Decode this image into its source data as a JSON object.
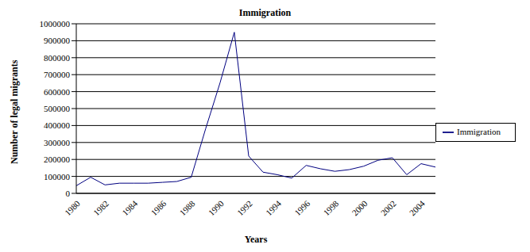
{
  "chart_data": {
    "type": "line",
    "title": "Immigration",
    "x_label": "Years",
    "y_label": "Number of legal migrants",
    "categories": [
      "1980",
      null,
      "1982",
      null,
      "1984",
      null,
      "1986",
      null,
      "1988",
      null,
      "1990",
      null,
      "1992",
      null,
      "1994",
      null,
      "1996",
      null,
      "1998",
      null,
      "2000",
      null,
      "2002",
      null,
      "2004",
      null
    ],
    "series": [
      {
        "name": "Immigration",
        "color": "#000080",
        "values": [
          45000,
          95000,
          50000,
          60000,
          60000,
          60000,
          65000,
          70000,
          95000,
          380000,
          650000,
          950000,
          220000,
          125000,
          110000,
          90000,
          165000,
          145000,
          130000,
          140000,
          160000,
          195000,
          210000,
          110000,
          175000,
          155000
        ]
      }
    ],
    "ylim": [
      0,
      1000000
    ],
    "yticks": [
      0,
      100000,
      200000,
      300000,
      400000,
      500000,
      600000,
      700000,
      800000,
      900000,
      1000000
    ],
    "grid": true,
    "legend": "right"
  }
}
